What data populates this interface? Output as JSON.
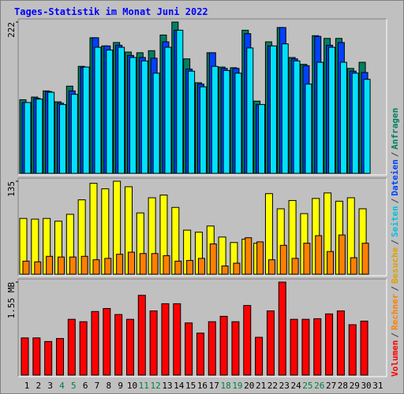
{
  "chart_data": {
    "type": "bar",
    "title": "Tages-Statistik im Monat Juni 2022",
    "categories": [
      "1",
      "2",
      "3",
      "4",
      "5",
      "6",
      "7",
      "8",
      "9",
      "10",
      "11",
      "12",
      "13",
      "14",
      "15",
      "16",
      "17",
      "18",
      "19",
      "20",
      "21",
      "22",
      "23",
      "24",
      "25",
      "26",
      "27",
      "28",
      "29",
      "30",
      "31"
    ],
    "category_colors": [
      "#000000",
      "#000000",
      "#000000",
      "#008040",
      "#008040",
      "#000000",
      "#000000",
      "#000000",
      "#000000",
      "#000000",
      "#008040",
      "#008040",
      "#000000",
      "#000000",
      "#000000",
      "#000000",
      "#000000",
      "#008040",
      "#008040",
      "#000000",
      "#000000",
      "#000000",
      "#000000",
      "#000000",
      "#008040",
      "#008040",
      "#000000",
      "#000000",
      "#000000",
      "#000000",
      "#000000"
    ],
    "legend_separator": "/",
    "panels": [
      {
        "ylim": [
          0,
          222
        ],
        "yticks": [
          222
        ],
        "series": [
          {
            "name": "Anfragen",
            "color": "#008060",
            "text_color": "#008060",
            "values": [
              108,
              112,
              121,
              105,
              128,
              157,
              199,
              187,
              192,
              178,
              177,
              180,
              203,
              222,
              168,
              133,
              177,
              156,
              155,
              210,
              106,
              193,
              214,
              170,
              160,
              202,
              198,
              198,
              154,
              163,
              null
            ]
          },
          {
            "name": "Dateien",
            "color": "#0040ff",
            "text_color": "#0040ff",
            "values": [
              104,
              110,
              120,
              103,
              121,
              156,
              199,
              187,
              188,
              173,
              170,
              169,
              193,
              210,
              153,
              131,
              177,
              154,
              154,
              205,
              101,
              187,
              214,
              168,
              158,
              201,
              188,
              192,
              150,
              148,
              null
            ]
          },
          {
            "name": "Seiten",
            "color": "#00e0ff",
            "text_color": "#00c0e0",
            "values": [
              104,
              109,
              119,
              101,
              116,
              156,
              185,
              181,
              185,
              170,
              165,
              147,
              185,
              210,
              150,
              127,
              157,
              151,
              147,
              184,
              101,
              187,
              190,
              165,
              131,
              163,
              185,
              163,
              147,
              138,
              null
            ]
          }
        ]
      },
      {
        "ylim": [
          0,
          135
        ],
        "yticks": [
          135
        ],
        "series": [
          {
            "name": "Besuche",
            "color": "#ffff00",
            "text_color": "#e0a000",
            "values": [
              81,
              80,
              81,
              77,
              87,
              108,
              132,
              124,
              135,
              127,
              89,
              111,
              115,
              97,
              64,
              61,
              70,
              54,
              46,
              51,
              45,
              117,
              95,
              107,
              88,
              110,
              118,
              106,
              111,
              95,
              null
            ]
          },
          {
            "name": "Rechner",
            "color": "#ff8000",
            "text_color": "#ff8000",
            "values": [
              19,
              18,
              26,
              25,
              25,
              26,
              21,
              23,
              29,
              32,
              30,
              30,
              27,
              19,
              20,
              23,
              44,
              12,
              16,
              53,
              47,
              21,
              42,
              23,
              45,
              56,
              33,
              57,
              24,
              45,
              null
            ]
          }
        ]
      },
      {
        "ylim": [
          0,
          1.55
        ],
        "yticks": [
          {
            "value": 1.55,
            "label": "1.55 MB"
          }
        ],
        "series": [
          {
            "name": "Volumen",
            "color": "#ff0000",
            "text_color": "#ff0000",
            "values": [
              0.62,
              0.62,
              0.56,
              0.61,
              0.93,
              0.89,
              1.06,
              1.11,
              1.01,
              0.93,
              1.33,
              1.07,
              1.19,
              1.19,
              0.87,
              0.7,
              0.89,
              0.98,
              0.89,
              1.16,
              0.63,
              1.07,
              1.55,
              0.93,
              0.93,
              0.94,
              1.02,
              1.07,
              0.84,
              0.9,
              null
            ]
          }
        ]
      }
    ]
  }
}
